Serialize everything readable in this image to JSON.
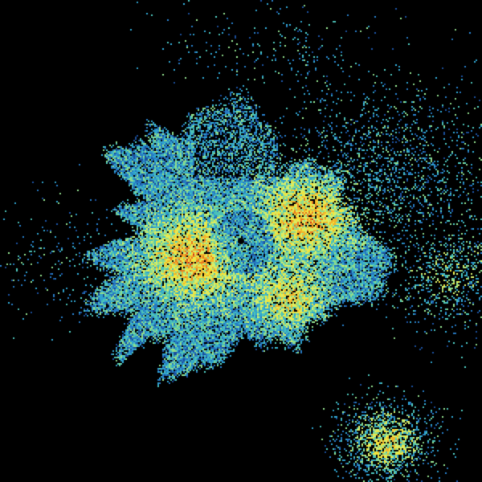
{
  "image": {
    "kind": "radar-reflectivity-display",
    "background_color": "#000000",
    "palette": [
      "#1a4f9c",
      "#2679c2",
      "#2fa3cf",
      "#4cc2b8",
      "#8fdc8c",
      "#d6ee6a",
      "#f2e43c",
      "#f2b42a",
      "#e8781e",
      "#d0301c"
    ],
    "site_marker_color": "#000000"
  }
}
